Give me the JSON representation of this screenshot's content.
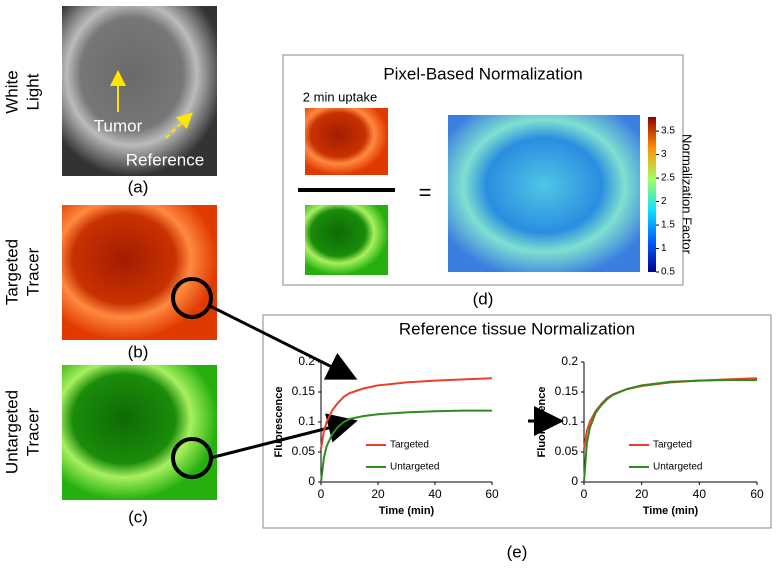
{
  "labels": {
    "white_light": [
      "White",
      "Light"
    ],
    "targeted_tracer": [
      "Targeted",
      "Tracer"
    ],
    "untargeted_tracer": [
      "Untargeted",
      "Tracer"
    ],
    "tumor": "Tumor",
    "reference": "Reference"
  },
  "panels": {
    "a": "(a)",
    "b": "(b)",
    "c": "(c)",
    "d": "(d)",
    "e": "(e)"
  },
  "pixel_normalization": {
    "title": "Pixel-Based Normalization",
    "uptake": "2 min uptake",
    "equals": "=",
    "colorbar_label": "Normalization Factor",
    "colorbar_lim": [
      0.5,
      3.8
    ],
    "colorbar_ticks": [
      0.5,
      1,
      1.5,
      2,
      2.5,
      3,
      3.5
    ]
  },
  "reference_normalization": {
    "title": "Reference tissue Normalization"
  },
  "chart_data": [
    {
      "type": "line",
      "xlabel": "Time (min)",
      "ylabel": "Fluorescence",
      "x": [
        0,
        1,
        2,
        4,
        6,
        8,
        10,
        15,
        20,
        30,
        40,
        50,
        60
      ],
      "series": [
        {
          "name": "Targeted",
          "color": "#e8402a",
          "values": [
            0.055,
            0.085,
            0.1,
            0.12,
            0.132,
            0.142,
            0.148,
            0.156,
            0.161,
            0.166,
            0.169,
            0.171,
            0.173
          ]
        },
        {
          "name": "Untargeted",
          "color": "#2e8b1e",
          "values": [
            0.0,
            0.04,
            0.06,
            0.08,
            0.092,
            0.1,
            0.105,
            0.11,
            0.113,
            0.116,
            0.118,
            0.119,
            0.119
          ]
        }
      ],
      "xlim": [
        0,
        60
      ],
      "xticks": [
        0,
        20,
        40,
        60
      ],
      "ylim": [
        0,
        0.2
      ],
      "yticks": [
        0,
        0.05,
        0.1,
        0.15,
        0.2
      ]
    },
    {
      "type": "line",
      "xlabel": "Time (min)",
      "ylabel": "Fluorescence",
      "x": [
        0,
        1,
        2,
        4,
        6,
        8,
        10,
        15,
        20,
        30,
        40,
        50,
        60
      ],
      "series": [
        {
          "name": "Targeted",
          "color": "#e8402a",
          "values": [
            0.055,
            0.085,
            0.1,
            0.118,
            0.13,
            0.14,
            0.146,
            0.155,
            0.16,
            0.166,
            0.169,
            0.171,
            0.173
          ]
        },
        {
          "name": "Untargeted",
          "color": "#2e8b1e",
          "values": [
            0.0,
            0.065,
            0.09,
            0.115,
            0.128,
            0.138,
            0.145,
            0.155,
            0.161,
            0.167,
            0.169,
            0.17,
            0.17
          ]
        }
      ],
      "xlim": [
        0,
        60
      ],
      "xticks": [
        0,
        20,
        40,
        60
      ],
      "ylim": [
        0,
        0.2
      ],
      "yticks": [
        0,
        0.05,
        0.1,
        0.15,
        0.2
      ]
    }
  ]
}
